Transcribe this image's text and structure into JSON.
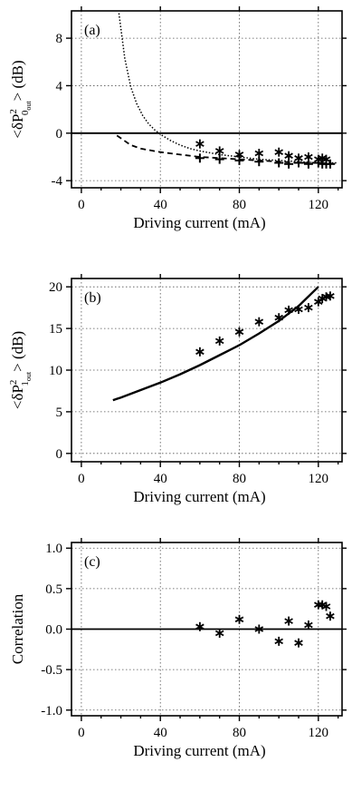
{
  "chart_data": [
    {
      "type": "scatter",
      "panel_label": "(a)",
      "xlabel": "Driving current (mA)",
      "ylabel": {
        "main": "<δP",
        "sup": "2",
        "sub": "0",
        "subsub": "out",
        "tail": "> (dB)"
      },
      "xlim": [
        -5,
        132
      ],
      "ylim": [
        -4.6,
        10.3
      ],
      "xticks": [
        0,
        40,
        80,
        120
      ],
      "yticks": [
        -4,
        0,
        4,
        8
      ],
      "grid": true,
      "zero_line": true,
      "series": [
        {
          "style": "asterisk",
          "x": [
            60,
            70,
            80,
            90,
            100,
            105,
            110,
            115,
            120,
            122,
            124
          ],
          "y": [
            -0.9,
            -1.5,
            -1.8,
            -1.7,
            -1.6,
            -1.9,
            -2.1,
            -2.0,
            -2.2,
            -2.1,
            -2.2
          ]
        },
        {
          "style": "plus",
          "x": [
            60,
            70,
            80,
            90,
            100,
            105,
            110,
            115,
            120,
            122,
            124,
            126
          ],
          "y": [
            -2.1,
            -2.2,
            -2.3,
            -2.4,
            -2.5,
            -2.6,
            -2.5,
            -2.6,
            -2.5,
            -2.6,
            -2.6,
            -2.6
          ]
        },
        {
          "style": "dotted-line",
          "x": [
            19,
            22,
            25,
            28,
            31,
            34,
            37,
            40,
            45,
            50,
            55,
            60,
            70,
            80,
            90,
            100,
            110,
            120,
            130
          ],
          "y": [
            10.1,
            6.3,
            3.9,
            2.5,
            1.5,
            0.8,
            0.3,
            -0.1,
            -0.6,
            -1.0,
            -1.3,
            -1.5,
            -1.8,
            -2.0,
            -2.2,
            -2.3,
            -2.4,
            -2.5,
            -2.5
          ]
        },
        {
          "style": "dashed-line",
          "x": [
            18,
            25,
            30,
            40,
            50,
            60,
            70,
            80,
            90,
            100,
            110,
            120,
            130
          ],
          "y": [
            -0.2,
            -1.0,
            -1.3,
            -1.6,
            -1.8,
            -2.0,
            -2.1,
            -2.2,
            -2.3,
            -2.4,
            -2.5,
            -2.5,
            -2.6
          ]
        }
      ]
    },
    {
      "type": "scatter",
      "panel_label": "(b)",
      "xlabel": "Driving current (mA)",
      "ylabel": {
        "main": "<δP",
        "sup": "2",
        "sub": "1",
        "subsub": "out",
        "tail": "> (dB)"
      },
      "xlim": [
        -5,
        132
      ],
      "ylim": [
        -1,
        21
      ],
      "xticks": [
        0,
        40,
        80,
        120
      ],
      "yticks": [
        0,
        5,
        10,
        15,
        20
      ],
      "grid": true,
      "zero_line": false,
      "series": [
        {
          "style": "asterisk",
          "x": [
            60,
            70,
            80,
            90,
            100,
            105,
            110,
            115,
            120,
            122,
            124,
            126
          ],
          "y": [
            12.2,
            13.5,
            14.6,
            15.8,
            16.3,
            17.2,
            17.3,
            17.5,
            18.2,
            18.6,
            18.8,
            18.9
          ]
        },
        {
          "style": "solid-line",
          "x": [
            16,
            20,
            30,
            40,
            50,
            60,
            70,
            80,
            90,
            100,
            110,
            120
          ],
          "y": [
            6.4,
            6.7,
            7.6,
            8.5,
            9.5,
            10.6,
            11.8,
            13.0,
            14.4,
            15.9,
            17.7,
            20.0
          ]
        }
      ]
    },
    {
      "type": "scatter",
      "panel_label": "(c)",
      "xlabel": "Driving current (mA)",
      "ylabel": {
        "main": "Correlation"
      },
      "xlim": [
        -5,
        132
      ],
      "ylim": [
        -1.07,
        1.07
      ],
      "xticks": [
        0,
        40,
        80,
        120
      ],
      "xtick_labels": [
        "0",
        "40",
        "80",
        "120"
      ],
      "yticks": [
        -1.0,
        -0.5,
        0.0,
        0.5,
        1.0
      ],
      "ytick_labels": [
        "-1.0",
        "-0.5",
        "0.0",
        "0.5",
        "1.0"
      ],
      "grid": true,
      "zero_line": true,
      "series": [
        {
          "style": "asterisk",
          "x": [
            60,
            70,
            80,
            90,
            100,
            105,
            110,
            115,
            120,
            122,
            124,
            126
          ],
          "y": [
            0.03,
            -0.05,
            0.12,
            0.0,
            -0.15,
            0.1,
            -0.17,
            0.05,
            0.3,
            0.3,
            0.28,
            0.16
          ]
        }
      ]
    }
  ]
}
